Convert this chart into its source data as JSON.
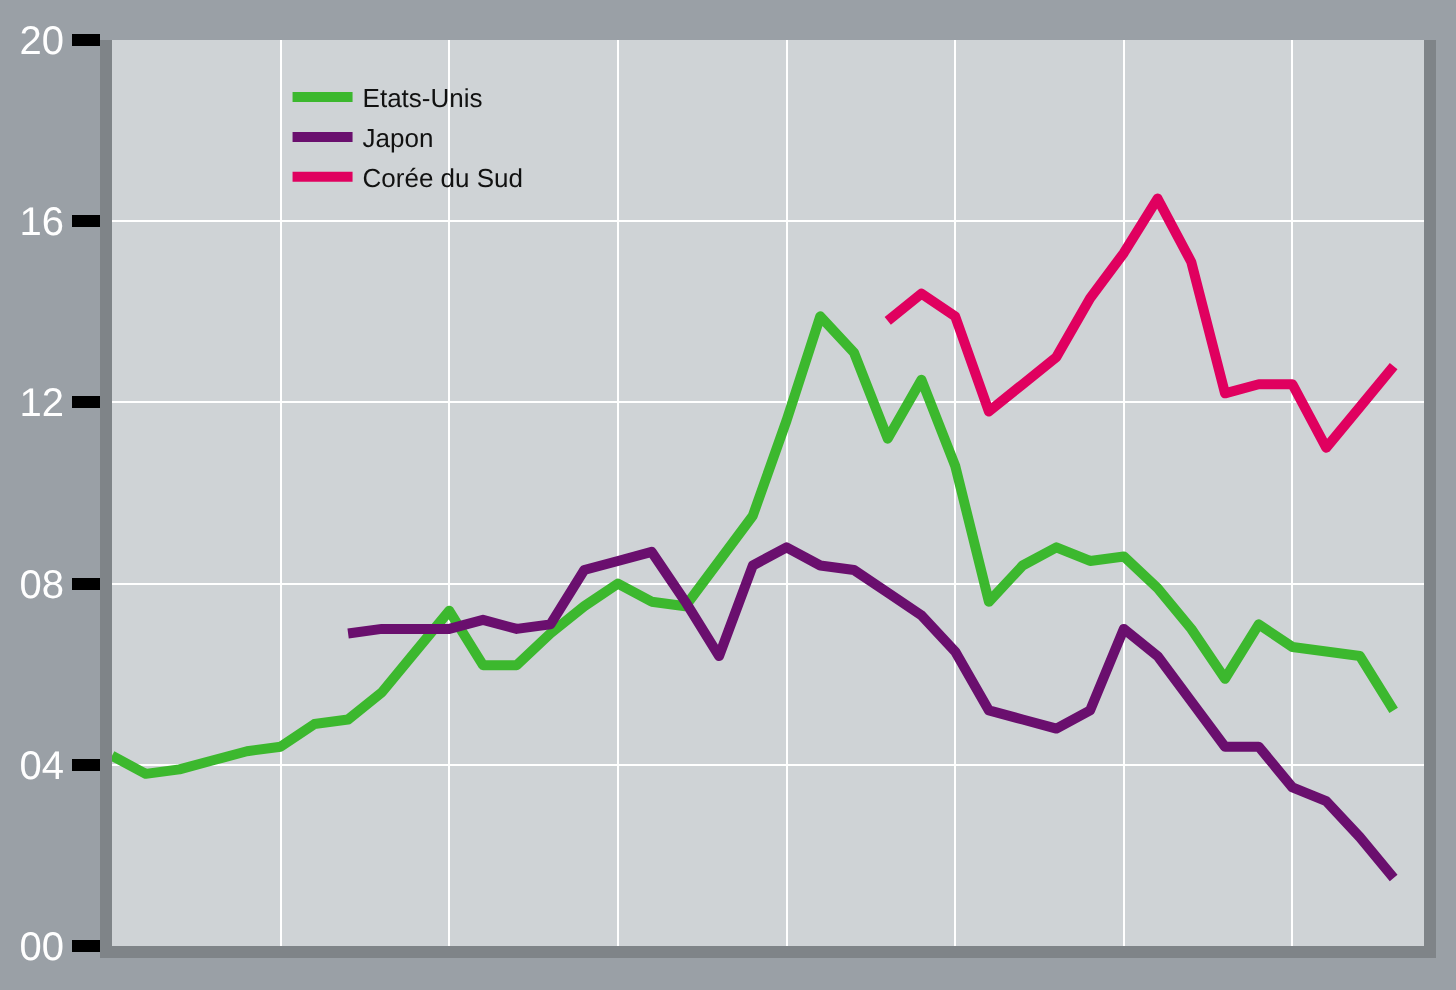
{
  "chart_data": {
    "type": "line",
    "categories": [
      null,
      null,
      null,
      null,
      null,
      null,
      null,
      null,
      null,
      null,
      null,
      null,
      null,
      null,
      null,
      null,
      null,
      null,
      null,
      null,
      null,
      null,
      null,
      null,
      null,
      null,
      null,
      null,
      null,
      null,
      null,
      null,
      null,
      null,
      null,
      null,
      null,
      null,
      null
    ],
    "series": [
      {
        "name": "Etats-Unis",
        "color": "#3cb82e",
        "values": [
          4.2,
          3.8,
          3.9,
          4.1,
          4.3,
          4.4,
          4.9,
          5.0,
          5.6,
          6.5,
          7.4,
          6.2,
          6.2,
          6.9,
          7.5,
          8.0,
          7.6,
          7.5,
          8.5,
          9.5,
          11.6,
          13.9,
          13.1,
          11.2,
          12.5,
          10.6,
          7.6,
          8.4,
          8.8,
          8.5,
          8.6,
          7.9,
          7.0,
          5.9,
          7.1,
          6.6,
          6.5,
          6.4,
          5.2
        ]
      },
      {
        "name": "Japon",
        "color": "#6a0f6e",
        "values": [
          null,
          null,
          null,
          null,
          null,
          null,
          null,
          6.9,
          7.0,
          7.0,
          7.0,
          7.2,
          7.0,
          7.1,
          8.3,
          8.5,
          8.7,
          7.6,
          6.4,
          8.4,
          8.8,
          8.4,
          8.3,
          7.8,
          7.3,
          6.5,
          5.2,
          5.0,
          4.8,
          5.2,
          7.0,
          6.4,
          5.4,
          4.4,
          4.4,
          3.5,
          3.2,
          2.4,
          1.5
        ]
      },
      {
        "name": "Corée du Sud",
        "color": "#e0005f",
        "values": [
          null,
          null,
          null,
          null,
          null,
          null,
          null,
          null,
          null,
          null,
          null,
          null,
          null,
          null,
          null,
          null,
          null,
          null,
          null,
          null,
          null,
          null,
          null,
          13.8,
          14.4,
          13.9,
          11.8,
          12.4,
          13.0,
          14.3,
          15.3,
          16.5,
          15.1,
          12.2,
          12.4,
          12.4,
          11.0,
          11.9,
          12.8
        ]
      }
    ],
    "ylim": [
      0,
      20
    ],
    "yticks": [
      {
        "value": 0,
        "label": "00"
      },
      {
        "value": 4,
        "label": "04"
      },
      {
        "value": 8,
        "label": "08"
      },
      12,
      16,
      20
    ],
    "grid": true,
    "legend": "top left",
    "marker": "none",
    "line_style": "solid",
    "tick_labels": "y"
  }
}
